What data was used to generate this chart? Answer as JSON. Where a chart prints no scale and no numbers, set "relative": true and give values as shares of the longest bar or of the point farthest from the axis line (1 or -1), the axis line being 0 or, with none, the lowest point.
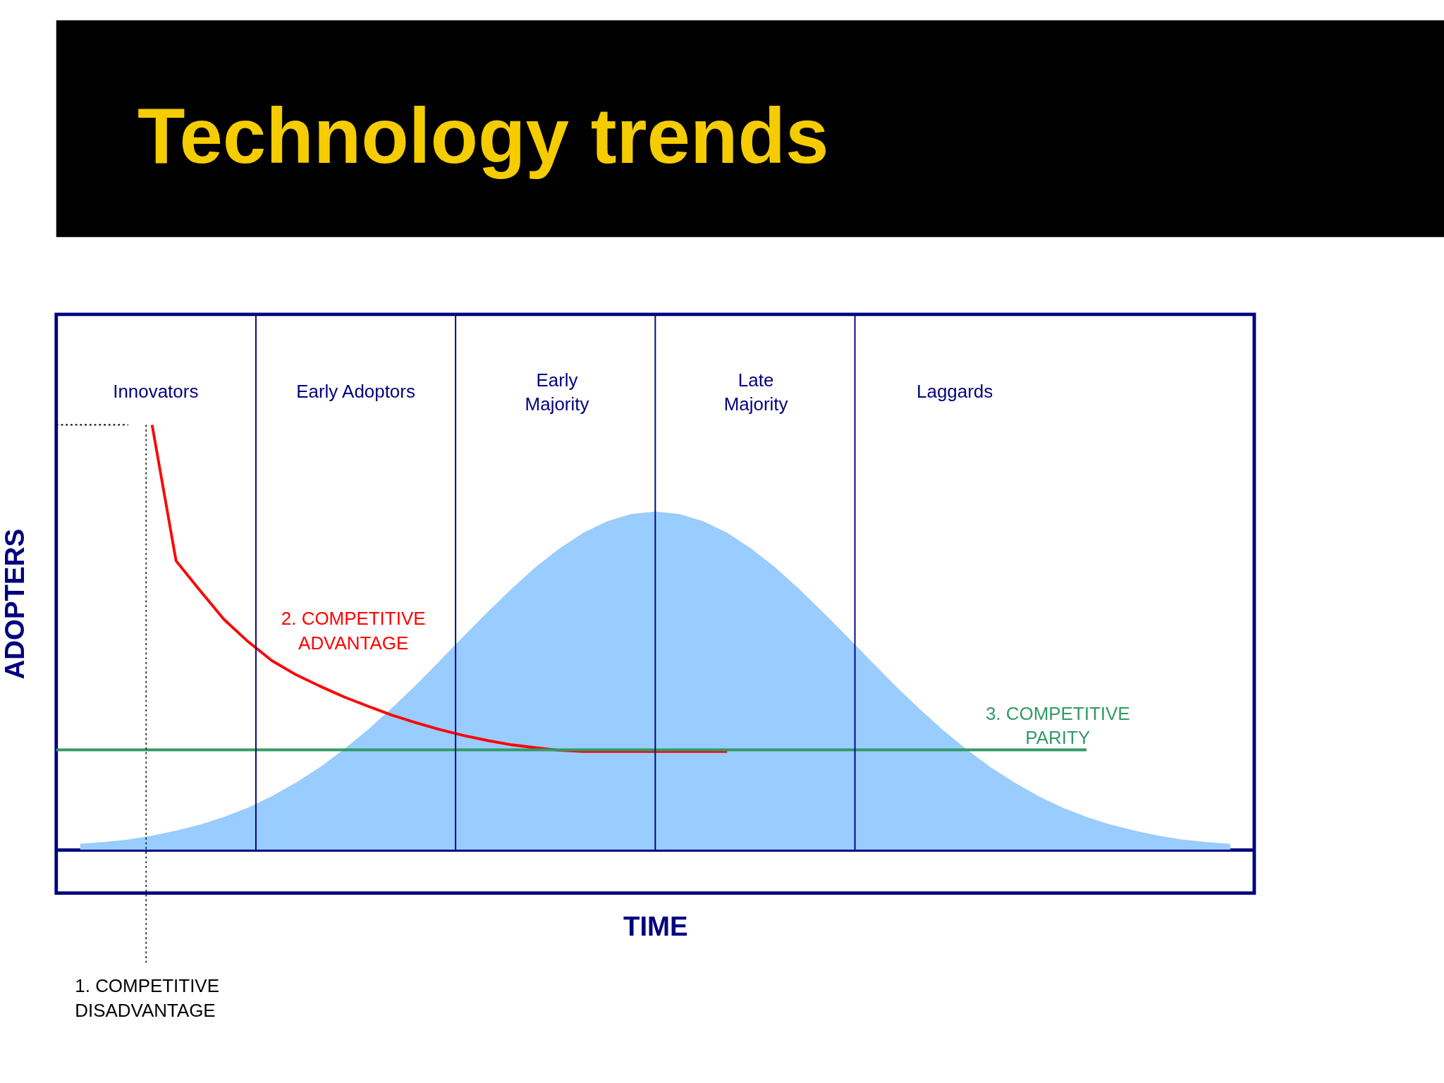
{
  "chart_data": {
    "type": "area",
    "title": "Technology trends",
    "xlabel": "TIME",
    "ylabel": "ADOPTERS",
    "relative": true,
    "grid": false,
    "tick_labels": false,
    "categories": [
      null,
      null,
      null,
      null,
      null,
      null,
      null,
      null,
      null,
      null,
      null,
      null,
      null,
      null,
      null,
      null,
      null,
      null,
      null,
      null,
      null,
      null,
      null,
      null,
      null,
      null,
      null,
      null,
      null,
      null,
      null,
      null,
      null,
      null,
      null,
      null,
      null,
      null,
      null,
      null,
      null,
      null,
      null,
      null,
      null,
      null,
      null,
      null,
      null,
      null,
      null
    ],
    "series": [
      {
        "color": "#99ccff",
        "values": [
          null,
          0.014,
          0.018,
          0.024,
          0.033,
          0.045,
          0.059,
          0.077,
          0.099,
          0.126,
          0.158,
          0.194,
          0.236,
          0.282,
          0.333,
          0.387,
          0.444,
          0.502,
          0.559,
          0.614,
          0.665,
          0.709,
          0.746,
          0.773,
          0.79,
          0.796,
          0.79,
          0.773,
          0.746,
          0.709,
          0.665,
          0.614,
          0.559,
          0.502,
          0.444,
          0.387,
          0.333,
          0.282,
          0.236,
          0.194,
          0.158,
          0.126,
          0.099,
          0.077,
          0.059,
          0.045,
          0.033,
          0.024,
          0.018,
          0.014,
          null
        ]
      },
      {
        "type": "line",
        "color": "#ff0000",
        "values": [
          null,
          null,
          null,
          null,
          1.0,
          0.68,
          0.61,
          0.542,
          0.49,
          0.445,
          0.412,
          0.385,
          0.36,
          0.338,
          0.317,
          0.299,
          0.283,
          0.269,
          0.257,
          0.247,
          0.24,
          0.234,
          0.231,
          0.231,
          0.231,
          0.231,
          0.231,
          0.231,
          0.231,
          null,
          null,
          null,
          null,
          null,
          null,
          null,
          null,
          null,
          null,
          null,
          null,
          null,
          null,
          null,
          null,
          null,
          null,
          null,
          null,
          null,
          null
        ]
      },
      {
        "type": "line",
        "color": "#339966",
        "values": [
          0.235,
          0.235,
          0.235,
          0.235,
          0.235,
          0.235,
          0.235,
          0.235,
          0.235,
          0.235,
          0.235,
          0.235,
          0.235,
          0.235,
          0.235,
          0.235,
          0.235,
          0.235,
          0.235,
          0.235,
          0.235,
          0.235,
          0.235,
          0.235,
          0.235,
          0.235,
          0.235,
          0.235,
          0.235,
          0.235,
          0.235,
          0.235,
          0.235,
          0.235,
          0.235,
          0.235,
          0.235,
          0.235,
          0.235,
          0.235,
          0.235,
          0.235,
          0.235,
          0.235,
          null,
          null,
          null,
          null,
          null,
          null,
          null
        ]
      },
      {
        "type": "line",
        "color": "#000000",
        "line_style": "dotted",
        "values": [
          1.0,
          1.0,
          1.0,
          1.0,
          null,
          null,
          null,
          null,
          null,
          null,
          null,
          null,
          null,
          null,
          null,
          null,
          null,
          null,
          null,
          null,
          null,
          null,
          null,
          null,
          null,
          null,
          null,
          null,
          null,
          null,
          null,
          null,
          null,
          null,
          null,
          null,
          null,
          null,
          null,
          null,
          null,
          null,
          null,
          null,
          null,
          null,
          null,
          null,
          null,
          null,
          null
        ]
      }
    ],
    "annotations": [
      "Innovators",
      "Early Adoptors",
      "Early\nMajority",
      "Late\nMajority",
      "Laggards",
      "2. COMPETITIVE\nADVANTAGE",
      "3. COMPETITIVE\nPARITY",
      "1. COMPETITIVE\nDISADVANTAGE"
    ]
  }
}
